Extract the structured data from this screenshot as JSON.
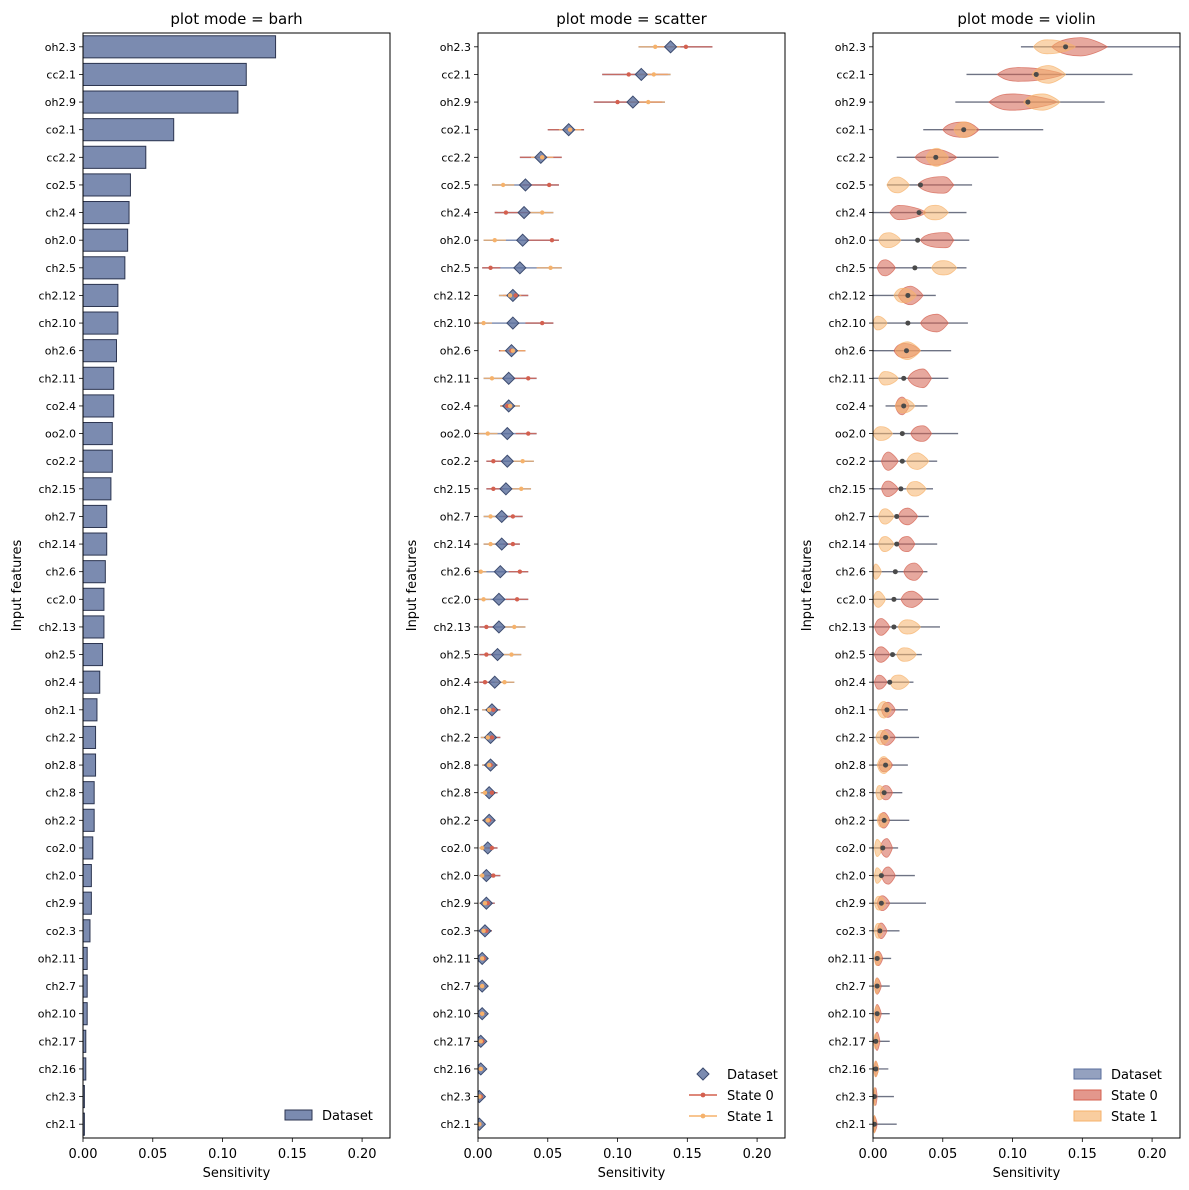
{
  "chart_data": {
    "features": [
      "oh2.3",
      "cc2.1",
      "oh2.9",
      "co2.1",
      "cc2.2",
      "co2.5",
      "ch2.4",
      "oh2.0",
      "ch2.5",
      "ch2.12",
      "ch2.10",
      "oh2.6",
      "ch2.11",
      "co2.4",
      "oo2.0",
      "co2.2",
      "ch2.15",
      "oh2.7",
      "ch2.14",
      "ch2.6",
      "cc2.0",
      "ch2.13",
      "oh2.5",
      "oh2.4",
      "oh2.1",
      "ch2.2",
      "oh2.8",
      "ch2.8",
      "oh2.2",
      "co2.0",
      "ch2.0",
      "ch2.9",
      "co2.3",
      "oh2.11",
      "ch2.7",
      "oh2.10",
      "ch2.17",
      "ch2.16",
      "ch2.3",
      "ch2.1"
    ],
    "xlim": [
      0,
      0.22
    ],
    "xticks": [
      "0.00",
      "0.05",
      "0.10",
      "0.15",
      "0.20"
    ],
    "xlabel": "Sensitivity",
    "ylabel": "Input features",
    "colors": {
      "dataset": "#5a6e9c",
      "state0": "#d4604f",
      "state1": "#f6b26b"
    },
    "legend_labels": {
      "dataset": "Dataset",
      "state0": "State 0",
      "state1": "State 1"
    },
    "panels": [
      {
        "type": "bar",
        "title": "plot mode = barh"
      },
      {
        "type": "scatter",
        "title": "plot mode = scatter"
      },
      {
        "type": "violin",
        "title": "plot mode = violin"
      }
    ],
    "dataset": [
      0.138,
      0.117,
      0.111,
      0.065,
      0.045,
      0.034,
      0.033,
      0.032,
      0.03,
      0.025,
      0.025,
      0.024,
      0.022,
      0.022,
      0.021,
      0.021,
      0.02,
      0.017,
      0.017,
      0.016,
      0.015,
      0.015,
      0.014,
      0.012,
      0.01,
      0.009,
      0.009,
      0.008,
      0.008,
      0.007,
      0.006,
      0.006,
      0.005,
      0.003,
      0.003,
      0.003,
      0.002,
      0.002,
      0.001,
      0.001
    ],
    "state0": [
      0.149,
      0.108,
      0.1,
      0.066,
      0.046,
      0.051,
      0.02,
      0.053,
      0.009,
      0.027,
      0.046,
      0.024,
      0.036,
      0.021,
      0.036,
      0.011,
      0.011,
      0.025,
      0.025,
      0.03,
      0.028,
      0.006,
      0.006,
      0.005,
      0.011,
      0.01,
      0.009,
      0.01,
      0.008,
      0.01,
      0.011,
      0.007,
      0.006,
      0.004,
      0.003,
      0.003,
      0.003,
      0.002,
      0.002,
      0.001
    ],
    "state1": [
      0.127,
      0.126,
      0.122,
      0.066,
      0.046,
      0.018,
      0.046,
      0.012,
      0.052,
      0.023,
      0.004,
      0.025,
      0.01,
      0.023,
      0.007,
      0.032,
      0.031,
      0.009,
      0.009,
      0.002,
      0.004,
      0.026,
      0.024,
      0.019,
      0.008,
      0.007,
      0.008,
      0.005,
      0.007,
      0.003,
      0.003,
      0.005,
      0.004,
      0.003,
      0.003,
      0.003,
      0.002,
      0.002,
      0.001,
      0.001
    ],
    "range0": [
      [
        0.128,
        0.168
      ],
      [
        0.089,
        0.136
      ],
      [
        0.083,
        0.132
      ],
      [
        0.05,
        0.076
      ],
      [
        0.03,
        0.06
      ],
      [
        0.032,
        0.058
      ],
      [
        0.012,
        0.038
      ],
      [
        0.034,
        0.058
      ],
      [
        0.003,
        0.016
      ],
      [
        0.018,
        0.036
      ],
      [
        0.034,
        0.054
      ],
      [
        0.015,
        0.034
      ],
      [
        0.025,
        0.042
      ],
      [
        0.016,
        0.026
      ],
      [
        0.027,
        0.042
      ],
      [
        0.006,
        0.018
      ],
      [
        0.006,
        0.018
      ],
      [
        0.018,
        0.032
      ],
      [
        0.018,
        0.03
      ],
      [
        0.022,
        0.036
      ],
      [
        0.02,
        0.036
      ],
      [
        0.001,
        0.012
      ],
      [
        0.001,
        0.012
      ],
      [
        0.001,
        0.01
      ],
      [
        0.006,
        0.016
      ],
      [
        0.005,
        0.016
      ],
      [
        0.004,
        0.014
      ],
      [
        0.005,
        0.014
      ],
      [
        0.004,
        0.012
      ],
      [
        0.005,
        0.014
      ],
      [
        0.006,
        0.016
      ],
      [
        0.003,
        0.012
      ],
      [
        0.003,
        0.01
      ],
      [
        0.001,
        0.007
      ],
      [
        0.001,
        0.006
      ],
      [
        0.001,
        0.006
      ],
      [
        0.001,
        0.005
      ],
      [
        0.001,
        0.004
      ],
      [
        0.0005,
        0.003
      ],
      [
        0.0005,
        0.003
      ]
    ],
    "range1": [
      [
        0.115,
        0.145
      ],
      [
        0.114,
        0.138
      ],
      [
        0.108,
        0.134
      ],
      [
        0.058,
        0.074
      ],
      [
        0.038,
        0.054
      ],
      [
        0.01,
        0.026
      ],
      [
        0.036,
        0.054
      ],
      [
        0.004,
        0.02
      ],
      [
        0.042,
        0.06
      ],
      [
        0.015,
        0.031
      ],
      [
        0.0,
        0.01
      ],
      [
        0.016,
        0.034
      ],
      [
        0.004,
        0.018
      ],
      [
        0.016,
        0.03
      ],
      [
        0.0,
        0.014
      ],
      [
        0.024,
        0.04
      ],
      [
        0.024,
        0.038
      ],
      [
        0.004,
        0.015
      ],
      [
        0.004,
        0.015
      ],
      [
        0.0,
        0.006
      ],
      [
        0.0,
        0.009
      ],
      [
        0.018,
        0.034
      ],
      [
        0.017,
        0.031
      ],
      [
        0.012,
        0.026
      ],
      [
        0.003,
        0.013
      ],
      [
        0.002,
        0.012
      ],
      [
        0.003,
        0.013
      ],
      [
        0.002,
        0.009
      ],
      [
        0.003,
        0.011
      ],
      [
        0.001,
        0.007
      ],
      [
        0.001,
        0.007
      ],
      [
        0.001,
        0.009
      ],
      [
        0.001,
        0.007
      ],
      [
        0.001,
        0.006
      ],
      [
        0.001,
        0.005
      ],
      [
        0.001,
        0.005
      ],
      [
        0.0005,
        0.004
      ],
      [
        0.0005,
        0.004
      ],
      [
        0.0003,
        0.002
      ],
      [
        0.0003,
        0.002
      ]
    ],
    "range_dataset": [
      [
        0.106,
        0.22
      ],
      [
        0.067,
        0.186
      ],
      [
        0.059,
        0.166
      ],
      [
        0.036,
        0.122
      ],
      [
        0.017,
        0.09
      ],
      [
        0.01,
        0.071
      ],
      [
        0.0,
        0.067
      ],
      [
        0.0,
        0.069
      ],
      [
        0.0,
        0.067
      ],
      [
        0.0,
        0.045
      ],
      [
        0.0,
        0.068
      ],
      [
        0.0,
        0.056
      ],
      [
        0.0,
        0.054
      ],
      [
        0.009,
        0.039
      ],
      [
        0.0,
        0.061
      ],
      [
        0.0,
        0.046
      ],
      [
        0.0,
        0.043
      ],
      [
        0.0,
        0.04
      ],
      [
        0.0,
        0.046
      ],
      [
        0.0,
        0.039
      ],
      [
        0.0,
        0.047
      ],
      [
        0.0,
        0.048
      ],
      [
        0.0,
        0.035
      ],
      [
        0.0,
        0.029
      ],
      [
        0.0,
        0.025
      ],
      [
        0.0,
        0.033
      ],
      [
        0.0,
        0.025
      ],
      [
        0.0,
        0.021
      ],
      [
        0.0,
        0.026
      ],
      [
        0.0,
        0.018
      ],
      [
        0.0,
        0.03
      ],
      [
        0.0,
        0.038
      ],
      [
        0.0,
        0.019
      ],
      [
        0.0,
        0.013
      ],
      [
        0.0,
        0.012
      ],
      [
        0.0,
        0.012
      ],
      [
        0.0,
        0.012
      ],
      [
        0.0,
        0.011
      ],
      [
        0.0,
        0.015
      ],
      [
        0.0,
        0.017
      ]
    ]
  }
}
